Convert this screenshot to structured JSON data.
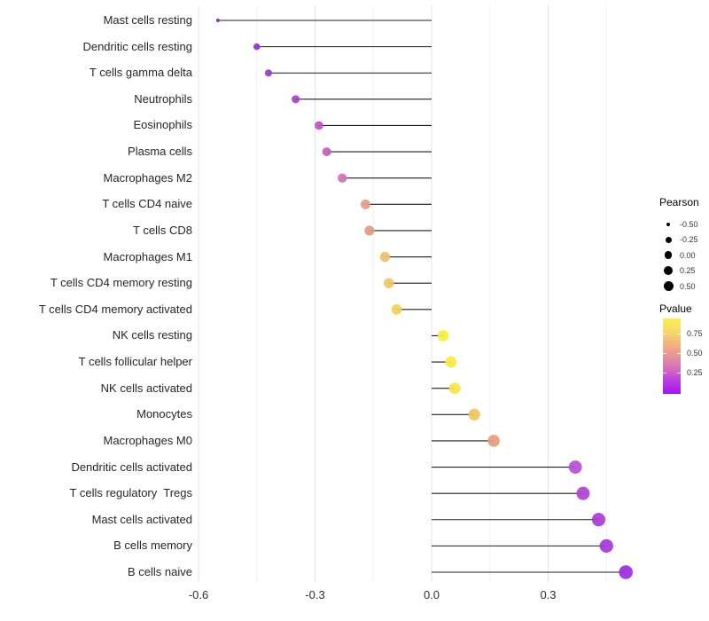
{
  "chart_data": {
    "type": "scatter",
    "subtype": "lollipop",
    "orientation": "horizontal",
    "title": "",
    "xlabel": "",
    "ylabel": "",
    "grid": "vertical-only",
    "baseline": 0,
    "xlim": [
      -0.63,
      0.58
    ],
    "x_ticks": [
      "-0.6",
      "-0.3",
      "0.0",
      "0.3"
    ],
    "x_tick_values": [
      -0.6,
      -0.3,
      0.0,
      0.3
    ],
    "categories": [
      "Mast cells resting",
      "Dendritic cells resting",
      "T cells gamma delta",
      "Neutrophils",
      "Eosinophils",
      "Plasma cells",
      "Macrophages M2",
      "T cells CD4 naive",
      "T cells CD8",
      "Macrophages M1",
      "T cells CD4 memory resting",
      "T cells CD4 memory activated",
      "NK cells resting",
      "T cells follicular helper",
      "NK cells activated",
      "Monocytes",
      "Macrophages M0",
      "Dendritic cells activated",
      "T cells regulatory  Tregs",
      "Mast cells activated",
      "B cells memory",
      "B cells naive"
    ],
    "series": [
      {
        "name": "Pearson correlation",
        "values": [
          -0.55,
          -0.45,
          -0.42,
          -0.35,
          -0.29,
          -0.27,
          -0.23,
          -0.17,
          -0.16,
          -0.12,
          -0.11,
          -0.09,
          0.03,
          0.05,
          0.06,
          0.11,
          0.16,
          0.37,
          0.39,
          0.43,
          0.45,
          0.5
        ],
        "pvalues_estimated": [
          0.02,
          0.06,
          0.08,
          0.12,
          0.18,
          0.21,
          0.27,
          0.48,
          0.47,
          0.65,
          0.66,
          0.7,
          0.87,
          0.84,
          0.82,
          0.64,
          0.48,
          0.25,
          0.21,
          0.18,
          0.16,
          0.1
        ],
        "point_colors": [
          "#8526cf",
          "#9630d2",
          "#9c35d0",
          "#a840cb",
          "#bf52c5",
          "#c45cbc",
          "#cf72b9",
          "#e59b85",
          "#e29a82",
          "#efc169",
          "#f0c464",
          "#f2cf57",
          "#f8ee3c",
          "#f8ea3e",
          "#f7e642",
          "#f2c35f",
          "#e69d7b",
          "#b44fd2",
          "#ae43d4",
          "#a93bd6",
          "#a636d9",
          "#9d2be1"
        ]
      }
    ],
    "legend": {
      "position": "right",
      "size_legend": {
        "title": "Pearson",
        "labels": [
          "-0.50",
          "-0.25",
          "0.00",
          "0.25",
          "0.50"
        ],
        "values": [
          -0.5,
          -0.25,
          0.0,
          0.25,
          0.5
        ],
        "dot_color": "#000000"
      },
      "color_legend": {
        "title": "Pvalue",
        "labels": [
          "0.75",
          "0.50",
          "0.25"
        ],
        "values": [
          0.75,
          0.5,
          0.25
        ],
        "gradient_stops": [
          "#f9f04b",
          "#f7da67",
          "#f2b57f",
          "#e69397",
          "#d46ec0",
          "#b93ce2",
          "#a315f2"
        ]
      }
    },
    "style_colors": {
      "stem": "#1f1f1f",
      "grid_major": "#e4e4e4",
      "grid_minor": "#f1f1f1",
      "background": "#ffffff"
    }
  }
}
